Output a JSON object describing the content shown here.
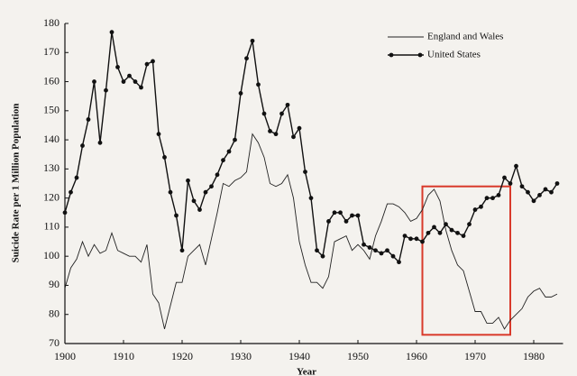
{
  "chart_data": {
    "type": "line",
    "y_label": "Suicide Rate per 1 Million Population",
    "x_label": "Year",
    "x": [
      1900,
      1901,
      1902,
      1903,
      1904,
      1905,
      1906,
      1907,
      1908,
      1909,
      1910,
      1911,
      1912,
      1913,
      1914,
      1915,
      1916,
      1917,
      1918,
      1919,
      1920,
      1921,
      1922,
      1923,
      1924,
      1925,
      1926,
      1927,
      1928,
      1929,
      1930,
      1931,
      1932,
      1933,
      1934,
      1935,
      1936,
      1937,
      1938,
      1939,
      1940,
      1941,
      1942,
      1943,
      1944,
      1945,
      1946,
      1947,
      1948,
      1949,
      1950,
      1951,
      1952,
      1953,
      1954,
      1955,
      1956,
      1957,
      1958,
      1959,
      1960,
      1961,
      1962,
      1963,
      1964,
      1965,
      1966,
      1967,
      1968,
      1969,
      1970,
      1971,
      1972,
      1973,
      1974,
      1975,
      1976,
      1977,
      1978,
      1979,
      1980,
      1981,
      1982,
      1983,
      1984
    ],
    "series": [
      {
        "name": "England and Wales",
        "color": "#222222",
        "marker": false,
        "values": [
          89,
          96,
          99,
          105,
          100,
          104,
          101,
          102,
          108,
          102,
          101,
          100,
          100,
          98,
          104,
          87,
          84,
          75,
          83,
          91,
          91,
          100,
          102,
          104,
          97,
          106,
          115,
          125,
          124,
          126,
          127,
          129,
          142,
          139,
          134,
          125,
          124,
          125,
          128,
          120,
          105,
          97,
          91,
          91,
          89,
          93,
          105,
          106,
          107,
          102,
          104,
          102,
          99,
          107,
          112,
          118,
          118,
          117,
          115,
          112,
          113,
          116,
          121,
          123,
          119,
          109,
          102,
          97,
          95,
          88,
          81,
          81,
          77,
          77,
          79,
          75,
          78,
          80,
          82,
          86,
          88,
          89,
          86,
          86,
          87
        ]
      },
      {
        "name": "United States",
        "color": "#111111",
        "marker": true,
        "values": [
          115,
          122,
          127,
          138,
          147,
          160,
          139,
          157,
          177,
          165,
          160,
          162,
          160,
          158,
          166,
          167,
          142,
          134,
          122,
          114,
          102,
          126,
          119,
          116,
          122,
          124,
          128,
          133,
          136,
          140,
          156,
          168,
          174,
          159,
          149,
          143,
          142,
          149,
          152,
          141,
          144,
          129,
          120,
          102,
          100,
          112,
          115,
          115,
          112,
          114,
          114,
          104,
          103,
          102,
          101,
          102,
          100,
          98,
          107,
          106,
          106,
          105,
          108,
          110,
          108,
          111,
          109,
          108,
          107,
          111,
          116,
          117,
          120,
          120,
          121,
          127,
          125,
          131,
          124,
          122,
          119,
          121,
          123,
          122,
          125
        ]
      }
    ],
    "xlim": [
      1900,
      1985
    ],
    "ylim": [
      70,
      180
    ],
    "xticks": [
      1900,
      1910,
      1920,
      1930,
      1940,
      1950,
      1960,
      1970,
      1980
    ],
    "yticks": [
      70,
      80,
      90,
      100,
      110,
      120,
      130,
      140,
      150,
      160,
      170,
      180
    ],
    "grid": false,
    "legend": "upper right",
    "highlight": {
      "xlim": [
        1961,
        1976
      ],
      "ylim": [
        73,
        124
      ],
      "color": "#d93a2b"
    }
  }
}
